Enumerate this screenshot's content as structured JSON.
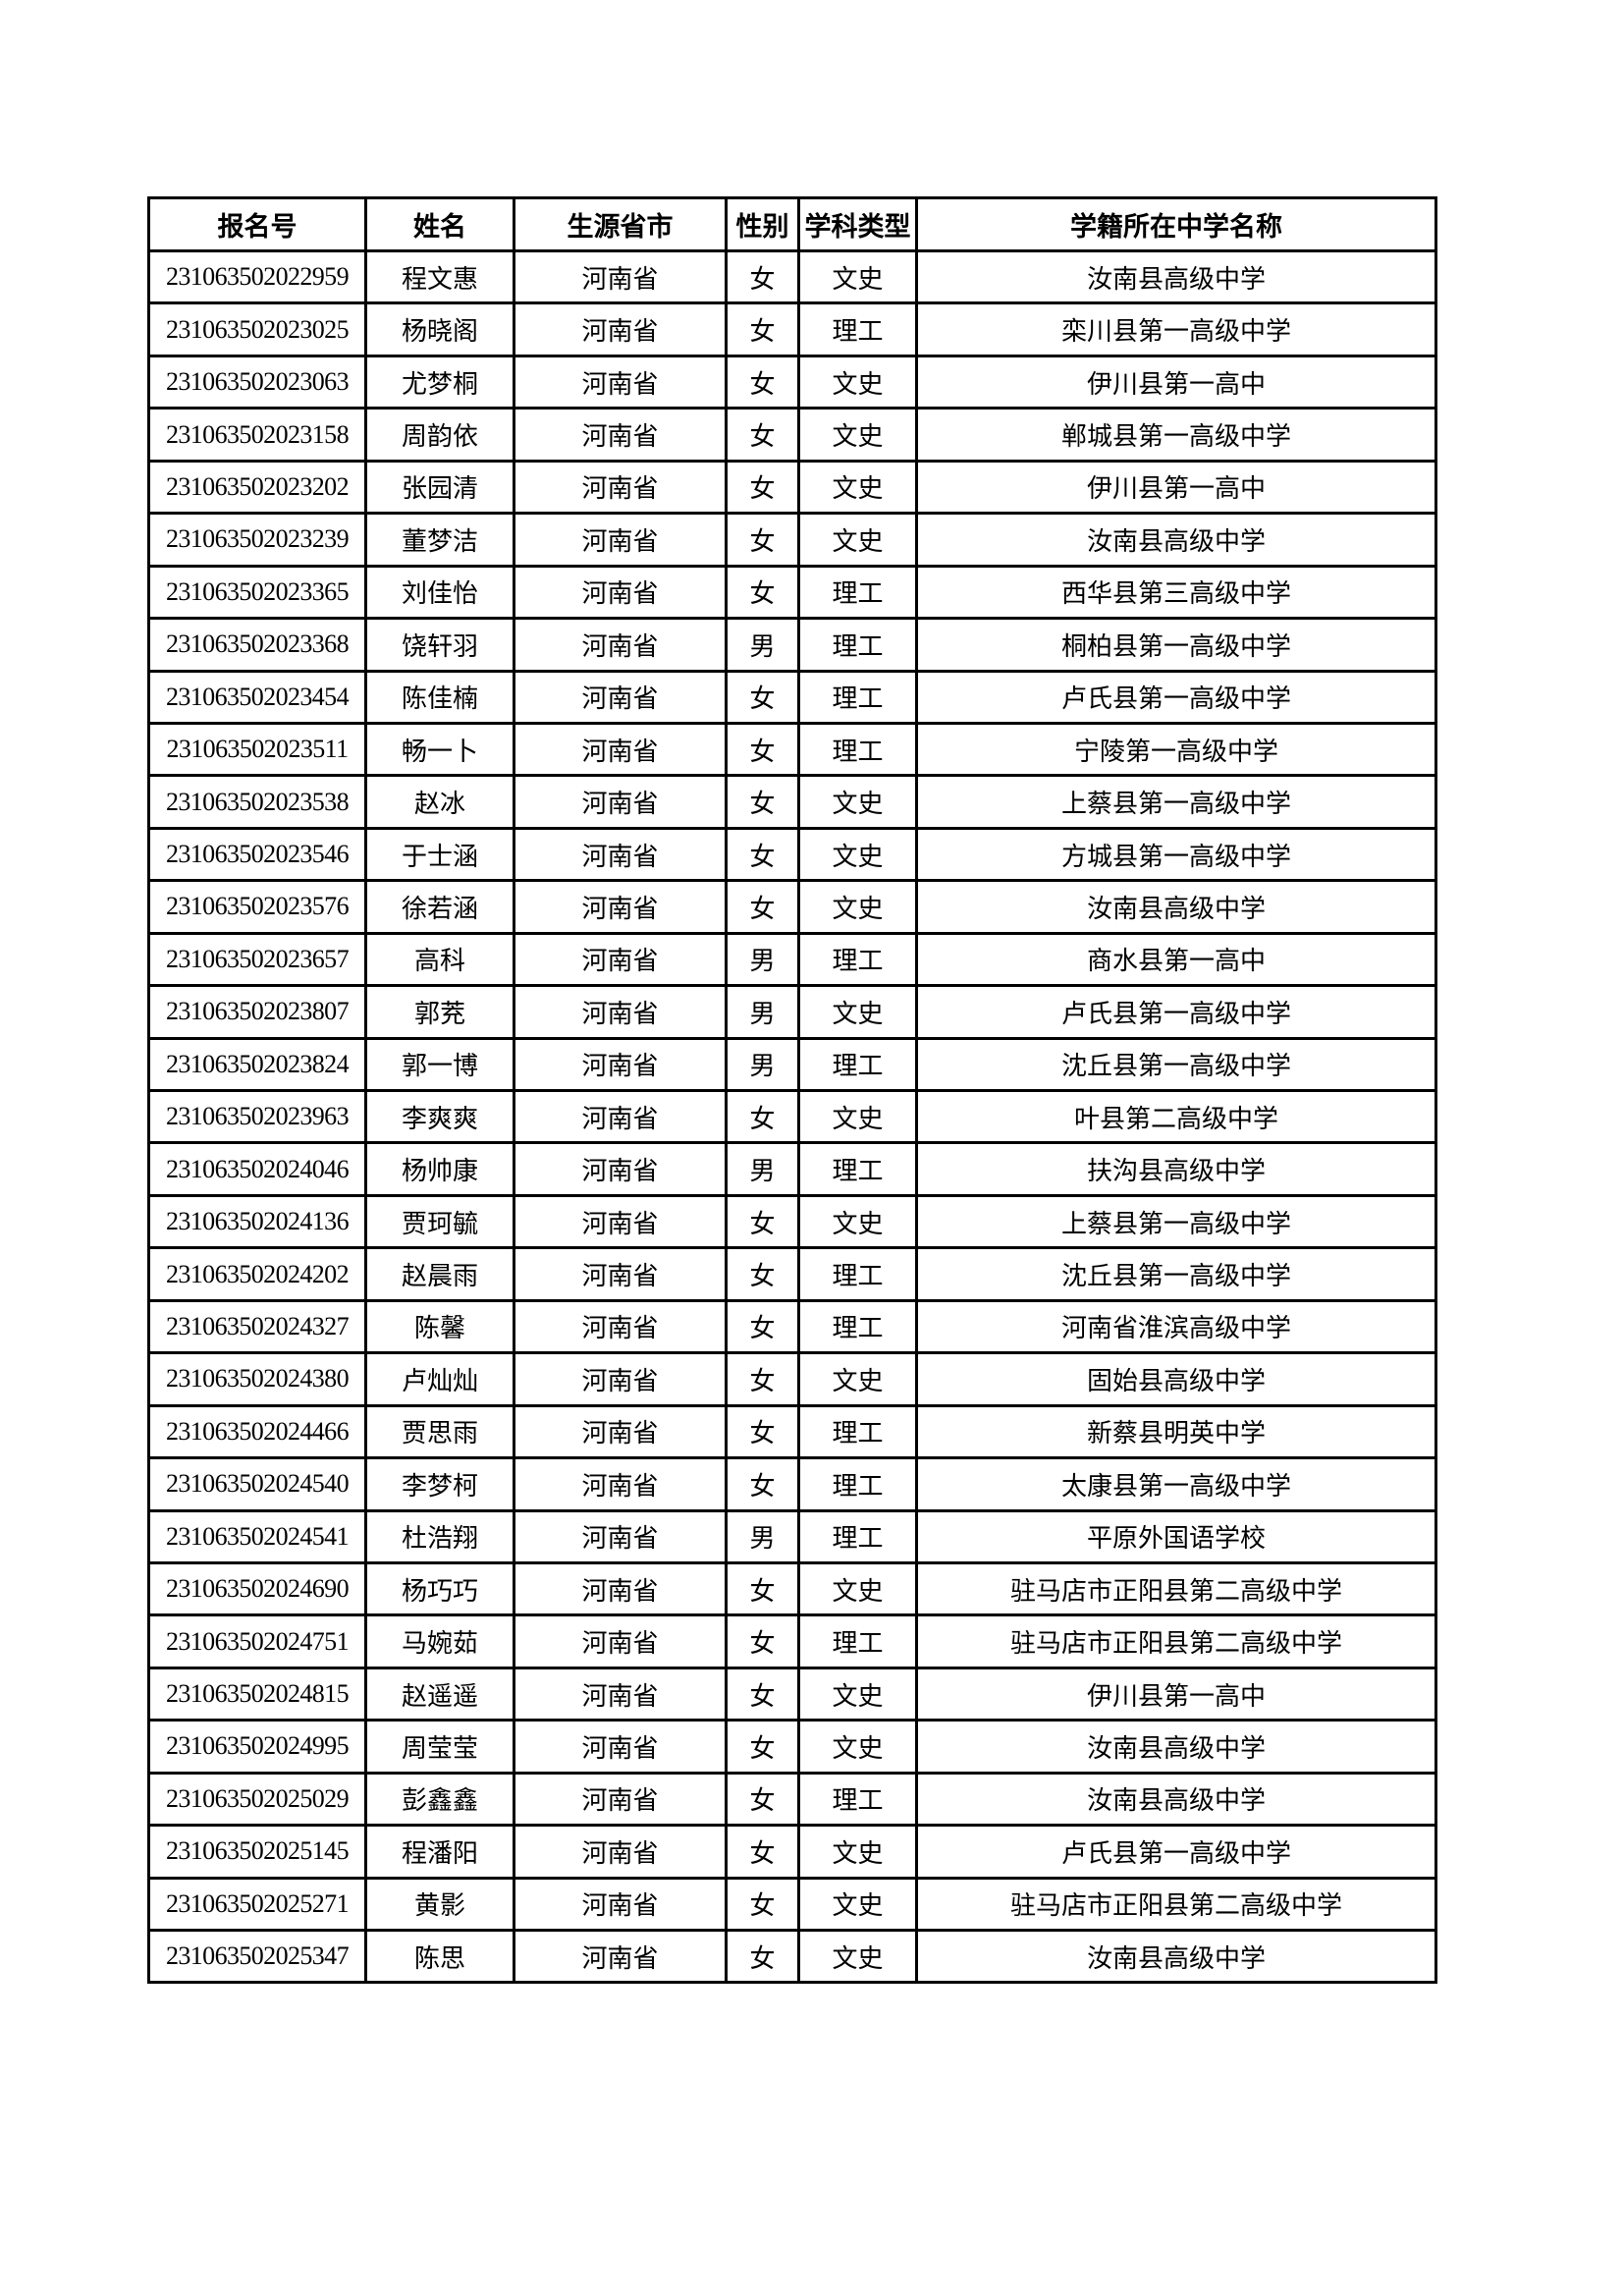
{
  "table": {
    "headers": [
      "报名号",
      "姓名",
      "生源省市",
      "性别",
      "学科类型",
      "学籍所在中学名称"
    ],
    "rows": [
      [
        "231063502022959",
        "程文惠",
        "河南省",
        "女",
        "文史",
        "汝南县高级中学"
      ],
      [
        "231063502023025",
        "杨晓阁",
        "河南省",
        "女",
        "理工",
        "栾川县第一高级中学"
      ],
      [
        "231063502023063",
        "尤梦桐",
        "河南省",
        "女",
        "文史",
        "伊川县第一高中"
      ],
      [
        "231063502023158",
        "周韵依",
        "河南省",
        "女",
        "文史",
        "郸城县第一高级中学"
      ],
      [
        "231063502023202",
        "张园清",
        "河南省",
        "女",
        "文史",
        "伊川县第一高中"
      ],
      [
        "231063502023239",
        "董梦洁",
        "河南省",
        "女",
        "文史",
        "汝南县高级中学"
      ],
      [
        "231063502023365",
        "刘佳怡",
        "河南省",
        "女",
        "理工",
        "西华县第三高级中学"
      ],
      [
        "231063502023368",
        "饶轩羽",
        "河南省",
        "男",
        "理工",
        "桐柏县第一高级中学"
      ],
      [
        "231063502023454",
        "陈佳楠",
        "河南省",
        "女",
        "理工",
        "卢氏县第一高级中学"
      ],
      [
        "231063502023511",
        "畅一卜",
        "河南省",
        "女",
        "理工",
        "宁陵第一高级中学"
      ],
      [
        "231063502023538",
        "赵冰",
        "河南省",
        "女",
        "文史",
        "上蔡县第一高级中学"
      ],
      [
        "231063502023546",
        "于士涵",
        "河南省",
        "女",
        "文史",
        "方城县第一高级中学"
      ],
      [
        "231063502023576",
        "徐若涵",
        "河南省",
        "女",
        "文史",
        "汝南县高级中学"
      ],
      [
        "231063502023657",
        "高科",
        "河南省",
        "男",
        "理工",
        "商水县第一高中"
      ],
      [
        "231063502023807",
        "郭茺",
        "河南省",
        "男",
        "文史",
        "卢氏县第一高级中学"
      ],
      [
        "231063502023824",
        "郭一博",
        "河南省",
        "男",
        "理工",
        "沈丘县第一高级中学"
      ],
      [
        "231063502023963",
        "李爽爽",
        "河南省",
        "女",
        "文史",
        "叶县第二高级中学"
      ],
      [
        "231063502024046",
        "杨帅康",
        "河南省",
        "男",
        "理工",
        "扶沟县高级中学"
      ],
      [
        "231063502024136",
        "贾珂毓",
        "河南省",
        "女",
        "文史",
        "上蔡县第一高级中学"
      ],
      [
        "231063502024202",
        "赵晨雨",
        "河南省",
        "女",
        "理工",
        "沈丘县第一高级中学"
      ],
      [
        "231063502024327",
        "陈馨",
        "河南省",
        "女",
        "理工",
        "河南省淮滨高级中学"
      ],
      [
        "231063502024380",
        "卢灿灿",
        "河南省",
        "女",
        "文史",
        "固始县高级中学"
      ],
      [
        "231063502024466",
        "贾思雨",
        "河南省",
        "女",
        "理工",
        "新蔡县明英中学"
      ],
      [
        "231063502024540",
        "李梦柯",
        "河南省",
        "女",
        "理工",
        "太康县第一高级中学"
      ],
      [
        "231063502024541",
        "杜浩翔",
        "河南省",
        "男",
        "理工",
        "平原外国语学校"
      ],
      [
        "231063502024690",
        "杨巧巧",
        "河南省",
        "女",
        "文史",
        "驻马店市正阳县第二高级中学"
      ],
      [
        "231063502024751",
        "马婉茹",
        "河南省",
        "女",
        "理工",
        "驻马店市正阳县第二高级中学"
      ],
      [
        "231063502024815",
        "赵遥遥",
        "河南省",
        "女",
        "文史",
        "伊川县第一高中"
      ],
      [
        "231063502024995",
        "周莹莹",
        "河南省",
        "女",
        "文史",
        "汝南县高级中学"
      ],
      [
        "231063502025029",
        "彭鑫鑫",
        "河南省",
        "女",
        "理工",
        "汝南县高级中学"
      ],
      [
        "231063502025145",
        "程潘阳",
        "河南省",
        "女",
        "文史",
        "卢氏县第一高级中学"
      ],
      [
        "231063502025271",
        "黄影",
        "河南省",
        "女",
        "文史",
        "驻马店市正阳县第二高级中学"
      ],
      [
        "231063502025347",
        "陈思",
        "河南省",
        "女",
        "文史",
        "汝南县高级中学"
      ]
    ]
  }
}
